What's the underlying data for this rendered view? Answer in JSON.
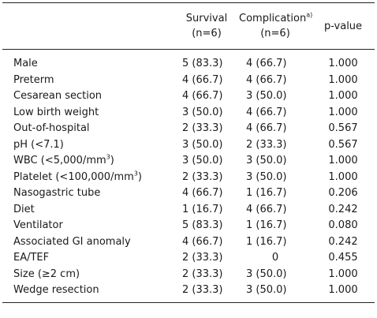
{
  "header": {
    "label": "",
    "survival": "Survival",
    "survival_n": "(n=6)",
    "complication": "Complication",
    "complication_sup": "a)",
    "complication_n": "(n=6)",
    "pvalue": "p-value"
  },
  "rows": [
    {
      "label": "Male",
      "label_sup": "",
      "label_suffix": "",
      "survival": "5 (83.3)",
      "complication": "4 (66.7)",
      "p": "1.000"
    },
    {
      "label": "Preterm",
      "label_sup": "",
      "label_suffix": "",
      "survival": "4 (66.7)",
      "complication": "4 (66.7)",
      "p": "1.000"
    },
    {
      "label": "Cesarean section",
      "label_sup": "",
      "label_suffix": "",
      "survival": "4 (66.7)",
      "complication": "3 (50.0)",
      "p": "1.000"
    },
    {
      "label": "Low birth weight",
      "label_sup": "",
      "label_suffix": "",
      "survival": "3 (50.0)",
      "complication": "4 (66.7)",
      "p": "1.000"
    },
    {
      "label": "Out-of-hospital",
      "label_sup": "",
      "label_suffix": "",
      "survival": "2 (33.3)",
      "complication": "4 (66.7)",
      "p": "0.567"
    },
    {
      "label": "pH (<7.1)",
      "label_sup": "",
      "label_suffix": "",
      "survival": "3 (50.0)",
      "complication": "2 (33.3)",
      "p": "0.567"
    },
    {
      "label": "WBC (<5,000/mm",
      "label_sup": "3",
      "label_suffix": ")",
      "survival": "3 (50.0)",
      "complication": "3 (50.0)",
      "p": "1.000"
    },
    {
      "label": "Platelet (<100,000/mm",
      "label_sup": "3",
      "label_suffix": ")",
      "survival": "2 (33.3)",
      "complication": "3 (50.0)",
      "p": "1.000"
    },
    {
      "label": "Nasogastric tube",
      "label_sup": "",
      "label_suffix": "",
      "survival": "4 (66.7)",
      "complication": "1 (16.7)",
      "p": "0.206"
    },
    {
      "label": "Diet",
      "label_sup": "",
      "label_suffix": "",
      "survival": "1 (16.7)",
      "complication": "4 (66.7)",
      "p": "0.242"
    },
    {
      "label": "Ventilator",
      "label_sup": "",
      "label_suffix": "",
      "survival": "5 (83.3)",
      "complication": "1 (16.7)",
      "p": "0.080"
    },
    {
      "label": "Associated GI anomaly",
      "label_sup": "",
      "label_suffix": "",
      "survival": "4 (66.7)",
      "complication": "1 (16.7)",
      "p": "0.242"
    },
    {
      "label": "EA/TEF",
      "label_sup": "",
      "label_suffix": "",
      "survival": "2 (33.3)",
      "complication": "0",
      "p": "0.455"
    },
    {
      "label": "Size (≥2 cm)",
      "label_sup": "",
      "label_suffix": "",
      "survival": "2 (33.3)",
      "complication": "3 (50.0)",
      "p": "1.000"
    },
    {
      "label": "Wedge resection",
      "label_sup": "",
      "label_suffix": "",
      "survival": "2 (33.3)",
      "complication": "3 (50.0)",
      "p": "1.000"
    }
  ]
}
